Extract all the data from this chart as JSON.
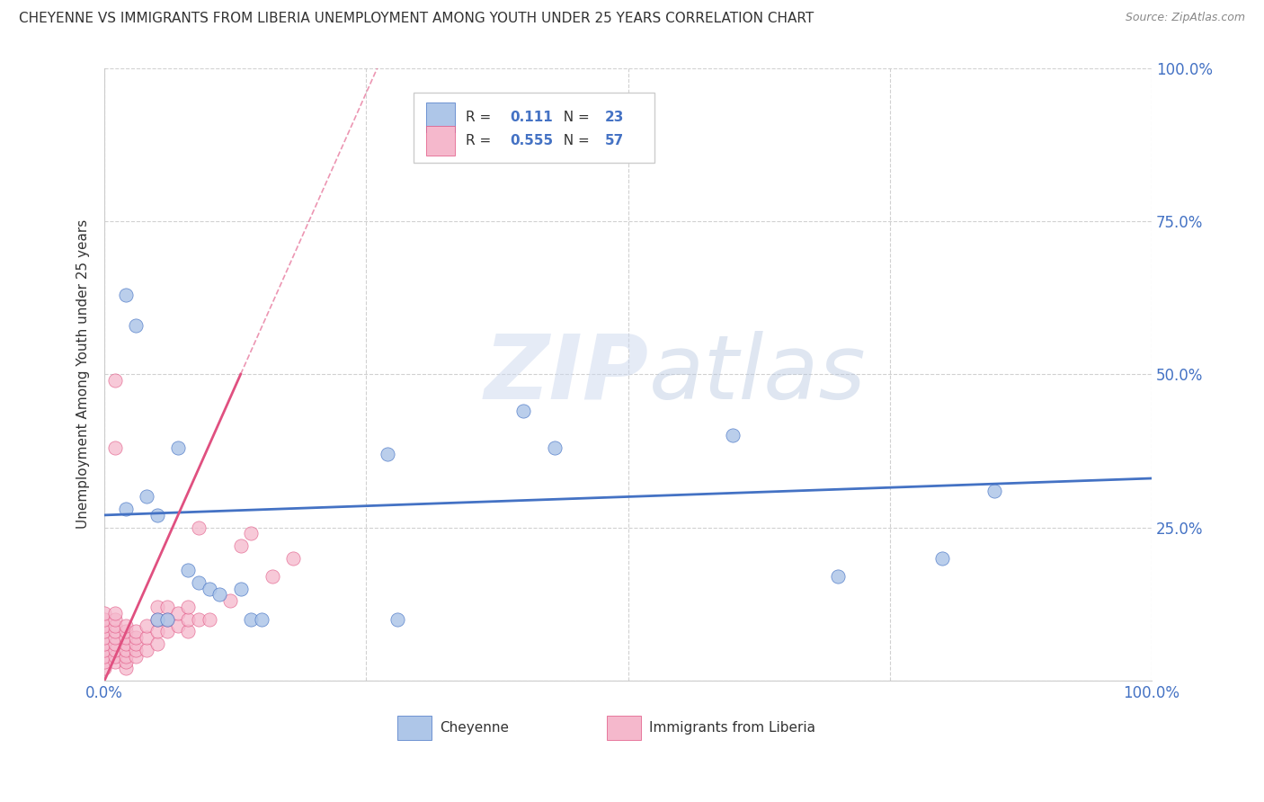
{
  "title": "CHEYENNE VS IMMIGRANTS FROM LIBERIA UNEMPLOYMENT AMONG YOUTH UNDER 25 YEARS CORRELATION CHART",
  "source": "Source: ZipAtlas.com",
  "ylabel": "Unemployment Among Youth under 25 years",
  "r_cheyenne": 0.111,
  "n_cheyenne": 23,
  "r_liberia": 0.555,
  "n_liberia": 57,
  "cheyenne_color": "#aec6e8",
  "liberia_color": "#f5b8cc",
  "cheyenne_line_color": "#4472C4",
  "liberia_line_color": "#e05080",
  "watermark_zip": "ZIP",
  "watermark_atlas": "atlas",
  "cheyenne_x": [
    0.02,
    0.02,
    0.03,
    0.04,
    0.05,
    0.05,
    0.06,
    0.07,
    0.08,
    0.09,
    0.1,
    0.11,
    0.13,
    0.14,
    0.15,
    0.27,
    0.28,
    0.4,
    0.43,
    0.6,
    0.7,
    0.8,
    0.85
  ],
  "cheyenne_y": [
    0.28,
    0.63,
    0.58,
    0.3,
    0.27,
    0.1,
    0.1,
    0.38,
    0.18,
    0.16,
    0.15,
    0.14,
    0.15,
    0.1,
    0.1,
    0.37,
    0.1,
    0.44,
    0.38,
    0.4,
    0.17,
    0.2,
    0.31
  ],
  "liberia_x": [
    0.0,
    0.0,
    0.0,
    0.0,
    0.0,
    0.0,
    0.0,
    0.0,
    0.0,
    0.0,
    0.01,
    0.01,
    0.01,
    0.01,
    0.01,
    0.01,
    0.01,
    0.01,
    0.01,
    0.01,
    0.01,
    0.02,
    0.02,
    0.02,
    0.02,
    0.02,
    0.02,
    0.02,
    0.02,
    0.03,
    0.03,
    0.03,
    0.03,
    0.03,
    0.04,
    0.04,
    0.04,
    0.05,
    0.05,
    0.05,
    0.05,
    0.06,
    0.06,
    0.06,
    0.07,
    0.07,
    0.08,
    0.08,
    0.08,
    0.09,
    0.09,
    0.1,
    0.12,
    0.13,
    0.14,
    0.16,
    0.18
  ],
  "liberia_y": [
    0.02,
    0.03,
    0.04,
    0.05,
    0.06,
    0.07,
    0.08,
    0.09,
    0.1,
    0.11,
    0.03,
    0.04,
    0.05,
    0.06,
    0.07,
    0.08,
    0.09,
    0.1,
    0.11,
    0.49,
    0.38,
    0.02,
    0.03,
    0.04,
    0.05,
    0.06,
    0.07,
    0.08,
    0.09,
    0.04,
    0.05,
    0.06,
    0.07,
    0.08,
    0.05,
    0.07,
    0.09,
    0.06,
    0.08,
    0.1,
    0.12,
    0.08,
    0.1,
    0.12,
    0.09,
    0.11,
    0.08,
    0.1,
    0.12,
    0.1,
    0.25,
    0.1,
    0.13,
    0.22,
    0.24,
    0.17,
    0.2
  ],
  "xmin": 0.0,
  "xmax": 1.0,
  "ymin": 0.0,
  "ymax": 1.0
}
